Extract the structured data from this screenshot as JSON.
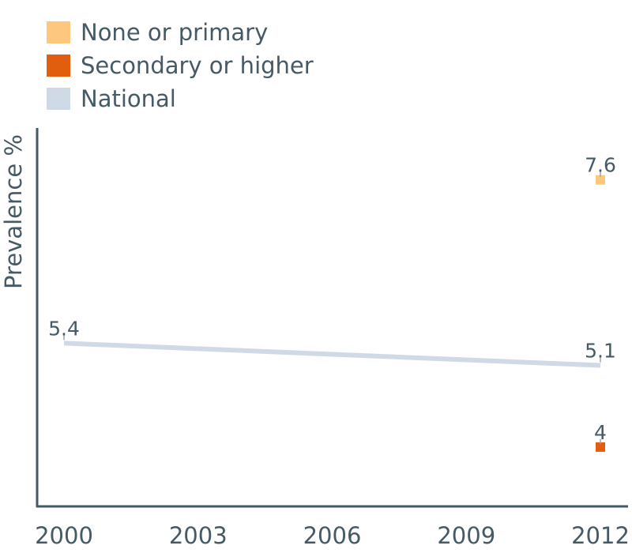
{
  "chart_data": {
    "type": "line",
    "ylabel": "Prevalence %",
    "xlabel": "",
    "x_ticks": [
      "2000",
      "2003",
      "2006",
      "2009",
      "2012"
    ],
    "xlim": [
      2000,
      2012
    ],
    "ylim": [
      3.2,
      8.3
    ],
    "grid": false,
    "legend_position": "top-left",
    "series": [
      {
        "name": "None or primary",
        "color": "#fdc87d",
        "marker": "square",
        "points": [
          {
            "x": 2012,
            "y": 7.6,
            "label": "7.6"
          }
        ]
      },
      {
        "name": "Secondary or higher",
        "color": "#e05e0e",
        "marker": "square",
        "points": [
          {
            "x": 2012,
            "y": 4,
            "label": "4"
          }
        ]
      },
      {
        "name": "National",
        "color": "#d0dae6",
        "marker": "line",
        "points": [
          {
            "x": 2000,
            "y": 5.4,
            "label": "5.4"
          },
          {
            "x": 2012,
            "y": 5.1,
            "label": "5.1"
          }
        ]
      }
    ]
  }
}
